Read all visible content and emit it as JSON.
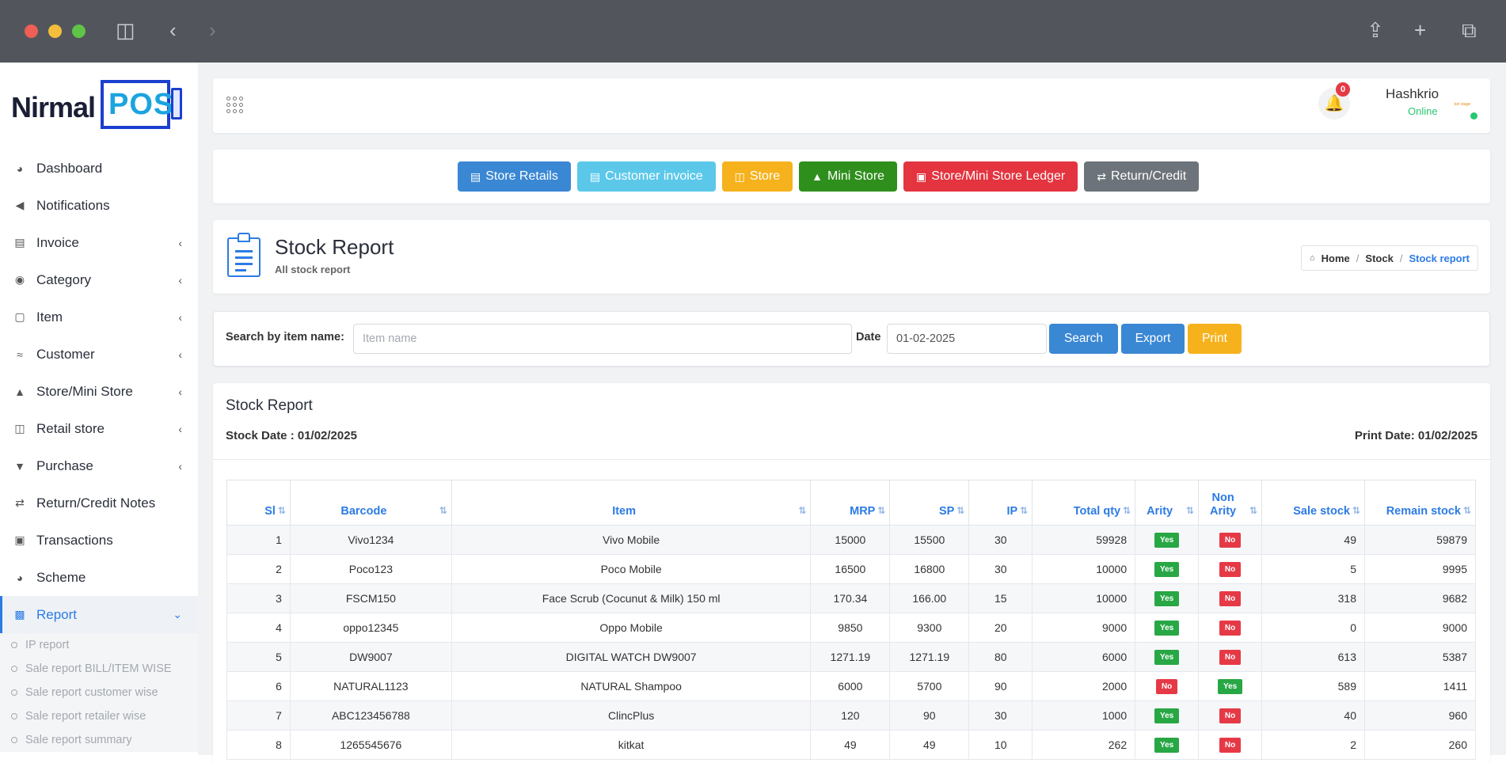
{
  "colors": {
    "accent": "#2c7be5",
    "online": "#28c76f",
    "yes": "#28a745",
    "no": "#e63946"
  },
  "logo": {
    "part1": "Nirmal",
    "part2": "POS"
  },
  "sidebar": {
    "items": [
      {
        "label": "Dashboard",
        "icon": "dashboard-icon",
        "chevron": false
      },
      {
        "label": "Notifications",
        "icon": "megaphone-icon",
        "chevron": false
      },
      {
        "label": "Invoice",
        "icon": "receipt-icon",
        "chevron": true
      },
      {
        "label": "Category",
        "icon": "ribbon-icon",
        "chevron": true
      },
      {
        "label": "Item",
        "icon": "bag-icon",
        "chevron": true
      },
      {
        "label": "Customer",
        "icon": "handshake-icon",
        "chevron": true
      },
      {
        "label": "Store/Mini Store",
        "icon": "basket-icon",
        "chevron": true
      },
      {
        "label": "Retail store",
        "icon": "store-icon",
        "chevron": true
      },
      {
        "label": "Purchase",
        "icon": "cart-icon",
        "chevron": true
      },
      {
        "label": "Return/Credit Notes",
        "icon": "exchange-icon",
        "chevron": false
      },
      {
        "label": "Transactions",
        "icon": "money-icon",
        "chevron": false
      },
      {
        "label": "Scheme",
        "icon": "gauge-icon",
        "chevron": false
      }
    ],
    "active": {
      "label": "Report",
      "icon": "bar-chart-icon"
    },
    "sub_items": [
      "IP report",
      "Sale report BILL/ITEM WISE",
      "Sale report customer wise",
      "Sale report retailer wise",
      "Sale report summary"
    ]
  },
  "topbar": {
    "notification_count": "0",
    "user_name": "Hashkrio",
    "user_status": "Online",
    "avatar_text": "ket stage"
  },
  "quick_buttons": [
    {
      "label": "Store Retails",
      "color": "#3a87d4",
      "icon": "register-icon"
    },
    {
      "label": "Customer invoice",
      "color": "#5bc8ea",
      "icon": "invoice-icon"
    },
    {
      "label": "Store",
      "color": "#f6b21d",
      "icon": "store-icon"
    },
    {
      "label": "Mini Store",
      "color": "#2f8f1d",
      "icon": "basket-icon"
    },
    {
      "label": "Store/Mini Store Ledger",
      "color": "#e3343f",
      "icon": "calendar-icon"
    },
    {
      "label": "Return/Credit",
      "color": "#6d737a",
      "icon": "exchange-icon"
    }
  ],
  "page": {
    "title": "Stock Report",
    "subtitle": "All stock report",
    "breadcrumb": {
      "home": "Home",
      "middle": "Stock",
      "current": "Stock report"
    }
  },
  "search": {
    "label": "Search by item name:",
    "placeholder": "Item name",
    "date_label": "Date",
    "date_value": "01-02-2025",
    "search_btn": "Search",
    "export_btn": "Export",
    "print_btn": "Print"
  },
  "report": {
    "title": "Stock Report",
    "stock_date": "Stock Date : 01/02/2025",
    "print_date": "Print Date: 01/02/2025",
    "columns": [
      "Sl",
      "Barcode",
      "Item",
      "MRP",
      "SP",
      "IP",
      "Total qty",
      "Arity",
      "Non Arity",
      "Sale stock",
      "Remain stock"
    ],
    "rows": [
      [
        "1",
        "Vivo1234",
        "Vivo Mobile",
        "15000",
        "15500",
        "30",
        "59928",
        "Yes",
        "No",
        "49",
        "59879"
      ],
      [
        "2",
        "Poco123",
        "Poco Mobile",
        "16500",
        "16800",
        "30",
        "10000",
        "Yes",
        "No",
        "5",
        "9995"
      ],
      [
        "3",
        "FSCM150",
        "Face Scrub (Cocunut & Milk) 150 ml",
        "170.34",
        "166.00",
        "15",
        "10000",
        "Yes",
        "No",
        "318",
        "9682"
      ],
      [
        "4",
        "oppo12345",
        "Oppo Mobile",
        "9850",
        "9300",
        "20",
        "9000",
        "Yes",
        "No",
        "0",
        "9000"
      ],
      [
        "5",
        "DW9007",
        "DIGITAL WATCH DW9007",
        "1271.19",
        "1271.19",
        "80",
        "6000",
        "Yes",
        "No",
        "613",
        "5387"
      ],
      [
        "6",
        "NATURAL1123",
        "NATURAL Shampoo",
        "6000",
        "5700",
        "90",
        "2000",
        "No",
        "Yes",
        "589",
        "1411"
      ],
      [
        "7",
        "ABC123456788",
        "ClincPlus",
        "120",
        "90",
        "30",
        "1000",
        "Yes",
        "No",
        "40",
        "960"
      ],
      [
        "8",
        "1265545676",
        "kitkat",
        "49",
        "49",
        "10",
        "262",
        "Yes",
        "No",
        "2",
        "260"
      ]
    ]
  }
}
